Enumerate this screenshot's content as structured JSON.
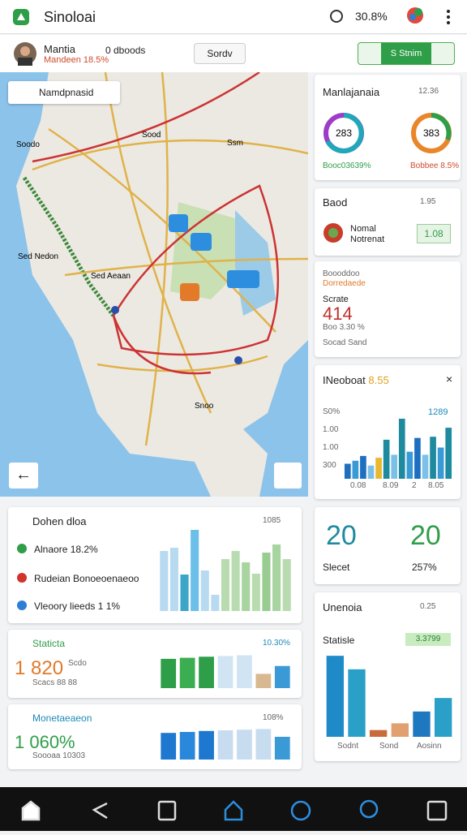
{
  "header": {
    "title": "Sinoloai",
    "status": "30.8%"
  },
  "user": {
    "name": "Mantia",
    "detail": "Mandeen 18.5%",
    "count": "0 dboods",
    "button": "Sordv",
    "toggle": "S Stnim"
  },
  "map": {
    "search": "Namdpnasid",
    "labels": [
      "Sood",
      "Soodo",
      "Ssm",
      "Sed Nedon",
      "Sed Aeaan",
      "Snoo"
    ]
  },
  "cards": {
    "summary": {
      "title": "Manlajanaia",
      "value": "12.36",
      "ring1": "283",
      "ring2": "383",
      "caption1": "Booc03639%",
      "caption2": "Bobbee 8.5%"
    },
    "good": {
      "title": "Baod",
      "value": "1.95",
      "label1": "Nomal",
      "label2": "Notrenat",
      "badge": "1.08"
    },
    "score": {
      "line1": "Boooddoo",
      "line2": "Dorredaede",
      "label": "Scrate",
      "value": "414",
      "sub": "Boo 3.30 %",
      "foot": "Socad Sand"
    },
    "chart": {
      "title": "INeoboat",
      "highlight": "8.55",
      "value": "1289",
      "yticks": [
        "S0%",
        "1.00",
        "1.00",
        "300"
      ],
      "xlabels": [
        "0.08",
        "8.09",
        "2",
        "8.05"
      ],
      "bars": {
        "ylim": [
          0,
          100
        ],
        "values": [
          25,
          30,
          38,
          22,
          35,
          65,
          40,
          100,
          45,
          68,
          40,
          70,
          52,
          85
        ],
        "colors": [
          "#1e6fc0",
          "#3a9ad6",
          "#1e6fc0",
          "#7cc0e8",
          "#e8b830",
          "#1e8a9e",
          "#7cc0e8",
          "#1e8a9e",
          "#3a9ad6",
          "#1e6fc0",
          "#7cc0e8",
          "#1e8a9e",
          "#3a9ad6",
          "#1e8a9e"
        ]
      }
    },
    "dist": {
      "title": "Dohen dloa",
      "value": "1085",
      "legend": [
        "Alnaore 18.2%",
        "Rudeian Bonoeoenaeoo",
        "Vleoory lieeds 1 1%"
      ],
      "bars": {
        "ylim": [
          0,
          100
        ],
        "values": [
          74,
          78,
          45,
          100,
          50,
          20,
          64,
          74,
          60,
          46,
          72,
          82,
          64
        ],
        "colors": [
          "#b8daf0",
          "#b8daf0",
          "#3aa6c8",
          "#6cbfe8",
          "#b8daf0",
          "#b8daf0",
          "#b8dcb0",
          "#b8dcb0",
          "#a8d4a0",
          "#b8dcb0",
          "#98cc90",
          "#a8d4a0",
          "#b8dcb0"
        ]
      }
    },
    "stat1": {
      "title": "Staticta",
      "value": "1 820",
      "sub1": "Scdo",
      "sub2": "Scacs 88 88",
      "pct": "10.30%",
      "bars": {
        "ylim": [
          0,
          100
        ],
        "values": [
          82,
          85,
          88,
          90,
          92,
          40,
          62
        ],
        "colors": [
          "#2e9e48",
          "#3aae50",
          "#2e9e48",
          "#d0e4f4",
          "#d0e4f4",
          "#d8b890",
          "#3a9ad6"
        ]
      }
    },
    "stat2": {
      "title": "Monetaeaeon",
      "value": "1 060%",
      "sub": "Soooaa 10303",
      "pct": "108%",
      "bars": {
        "ylim": [
          0,
          100
        ],
        "values": [
          82,
          85,
          88,
          90,
          92,
          94,
          70
        ],
        "colors": [
          "#1e78d0",
          "#2a88dc",
          "#1e78d0",
          "#c8dcf0",
          "#c8dcf0",
          "#c8dcf0",
          "#3a9ad6"
        ]
      }
    },
    "big": {
      "left": "20",
      "right": "20",
      "label": "Slecet",
      "pct": "257%"
    },
    "unit": {
      "title": "Unenoia",
      "value": "0.25",
      "label": "Statisle",
      "badge": "3.3799",
      "xlabels": [
        "Sodnt",
        "Sond",
        "Aosinn"
      ],
      "bars": {
        "ylim": [
          0,
          100
        ],
        "values": [
          96,
          80,
          8,
          16,
          30,
          46
        ],
        "colors": [
          "#1e8ac8",
          "#2aa0c8",
          "#c86a3a",
          "#e0a070",
          "#1e78c0",
          "#2aa0c8"
        ]
      }
    }
  }
}
